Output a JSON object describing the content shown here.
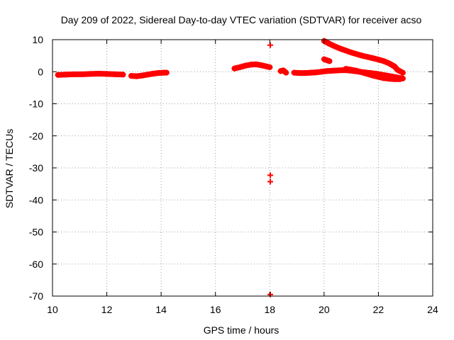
{
  "chart_data": {
    "type": "scatter",
    "title": "Day 209 of 2022, Sidereal Day-to-day VTEC variation (SDTVAR) for receiver acso",
    "xlabel": "GPS time / hours",
    "ylabel": "SDTVAR / TECUs",
    "xlim": [
      10,
      24
    ],
    "ylim": [
      -70,
      10
    ],
    "xticks": [
      10,
      12,
      14,
      16,
      18,
      20,
      22,
      24
    ],
    "yticks": [
      10,
      0,
      -10,
      -20,
      -30,
      -40,
      -50,
      -60,
      -70
    ],
    "grid": true,
    "marker": "plus",
    "color": "#ff0000",
    "series": [
      {
        "name": "SDTVAR",
        "segments": [
          [
            [
              10.2,
              -1.0
            ],
            [
              10.5,
              -0.9
            ],
            [
              10.8,
              -0.8
            ],
            [
              11.1,
              -0.8
            ],
            [
              11.4,
              -0.7
            ],
            [
              11.7,
              -0.6
            ],
            [
              12.0,
              -0.7
            ],
            [
              12.3,
              -0.8
            ],
            [
              12.6,
              -0.9
            ]
          ],
          [
            [
              12.9,
              -1.3
            ],
            [
              13.1,
              -1.4
            ],
            [
              13.3,
              -1.2
            ],
            [
              13.5,
              -0.9
            ],
            [
              13.7,
              -0.6
            ],
            [
              13.9,
              -0.4
            ],
            [
              14.1,
              -0.3
            ],
            [
              14.2,
              -0.3
            ]
          ],
          [
            [
              16.7,
              1.0
            ],
            [
              16.9,
              1.4
            ],
            [
              17.1,
              1.9
            ],
            [
              17.3,
              2.2
            ],
            [
              17.5,
              2.3
            ],
            [
              17.7,
              2.0
            ],
            [
              17.9,
              1.6
            ],
            [
              18.0,
              1.4
            ]
          ],
          [
            [
              18.4,
              0.2
            ],
            [
              18.5,
              0.4
            ],
            [
              18.6,
              -0.3
            ]
          ],
          [
            [
              18.9,
              -0.3
            ],
            [
              19.1,
              -0.4
            ],
            [
              19.3,
              -0.4
            ],
            [
              19.5,
              -0.3
            ],
            [
              19.7,
              -0.2
            ],
            [
              19.9,
              0.0
            ],
            [
              20.1,
              0.2
            ],
            [
              20.3,
              0.3
            ],
            [
              20.5,
              0.4
            ],
            [
              20.7,
              0.5
            ],
            [
              20.9,
              0.4
            ],
            [
              21.1,
              0.2
            ],
            [
              21.3,
              0.0
            ],
            [
              21.5,
              -0.2
            ],
            [
              21.7,
              -0.4
            ],
            [
              21.9,
              -0.6
            ],
            [
              22.1,
              -0.9
            ],
            [
              22.3,
              -1.2
            ],
            [
              22.5,
              -1.5
            ],
            [
              22.7,
              -1.8
            ],
            [
              22.9,
              -2.1
            ]
          ],
          [
            [
              20.0,
              9.6
            ],
            [
              20.2,
              8.7
            ],
            [
              20.4,
              7.9
            ],
            [
              20.6,
              7.2
            ],
            [
              20.8,
              6.6
            ],
            [
              21.0,
              6.0
            ],
            [
              21.2,
              5.5
            ],
            [
              21.4,
              5.0
            ],
            [
              21.6,
              4.6
            ],
            [
              21.8,
              4.2
            ],
            [
              22.0,
              3.8
            ],
            [
              22.2,
              3.3
            ],
            [
              22.4,
              2.6
            ],
            [
              22.6,
              1.6
            ],
            [
              22.7,
              0.6
            ],
            [
              22.9,
              -0.3
            ]
          ],
          [
            [
              20.0,
              3.9
            ],
            [
              20.1,
              3.6
            ],
            [
              20.2,
              3.3
            ]
          ],
          [
            [
              20.8,
              0.9
            ],
            [
              21.0,
              0.6
            ],
            [
              21.2,
              0.3
            ],
            [
              21.4,
              -0.2
            ],
            [
              21.6,
              -0.7
            ],
            [
              21.8,
              -1.2
            ],
            [
              22.0,
              -1.6
            ],
            [
              22.2,
              -2.0
            ],
            [
              22.4,
              -2.2
            ],
            [
              22.6,
              -2.3
            ],
            [
              22.8,
              -2.3
            ]
          ]
        ],
        "outliers": [
          [
            18.02,
            8.3
          ],
          [
            18.02,
            -32.3
          ],
          [
            18.02,
            -34.3
          ],
          [
            18.02,
            -69.5
          ]
        ]
      }
    ]
  }
}
